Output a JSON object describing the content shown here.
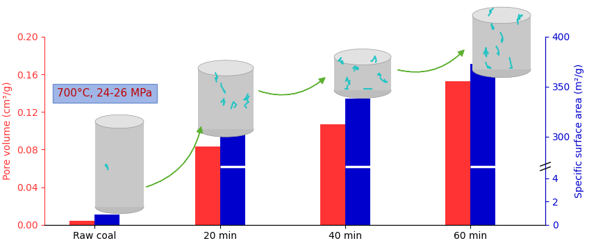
{
  "chart_data": {
    "type": "bar",
    "categories": [
      "Raw coal",
      "20 min",
      "40 min",
      "60 min"
    ],
    "ylabel": "Pore volume (cm³/g)",
    "y2label": "Specific surface area (m²/g)",
    "annotation": "700°C, 24-26 MPa",
    "series": [
      {
        "color": "#ff3333",
        "values": [
          0.004,
          0.083,
          0.107,
          0.153
        ]
      },
      {
        "color": "#0000cc",
        "values": [
          0.9,
          308,
          338,
          373
        ],
        "axis": "y2"
      }
    ],
    "ylim": [
      0,
      0.2
    ],
    "yticks": [
      {
        "value": 0.0,
        "label": "0.00"
      },
      {
        "value": 0.04,
        "label": "0.04"
      },
      {
        "value": 0.08,
        "label": "0.08"
      },
      {
        "value": 0.12,
        "label": "0.12"
      },
      {
        "value": 0.16,
        "label": "0.16"
      },
      {
        "value": 0.2,
        "label": "0.20"
      }
    ],
    "y2lim": [
      0,
      400
    ],
    "y2ticks": [
      0,
      2,
      4,
      300,
      350,
      400
    ],
    "y2_break": [
      5,
      270
    ]
  }
}
